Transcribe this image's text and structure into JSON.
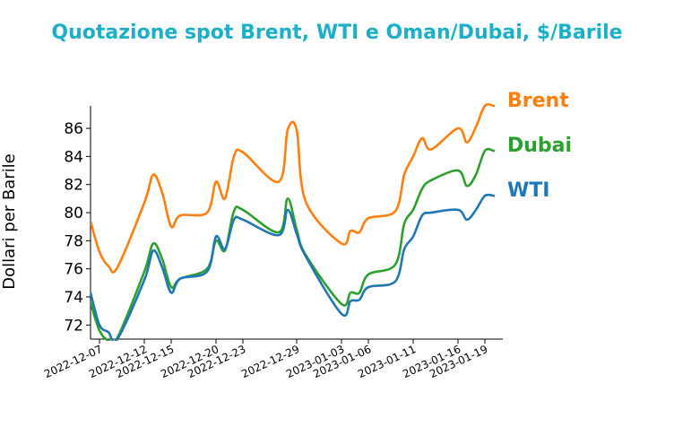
{
  "chart_data": {
    "type": "line",
    "title": "Quotazione spot Brent, WTI e Oman/Dubai, $/Barile",
    "title_color": "#1bb0c7",
    "xlabel": "",
    "ylabel": "Dollari per Barile",
    "ylim": [
      71,
      87.6
    ],
    "yticks": [
      72,
      74,
      76,
      78,
      80,
      82,
      84,
      86
    ],
    "xlim": [
      "2022-12-06",
      "2023-01-21"
    ],
    "xticks": [
      "2022-12-07",
      "2022-12-12",
      "2022-12-15",
      "2022-12-20",
      "2022-12-23",
      "2022-12-29",
      "2023-01-03",
      "2023-01-06",
      "2023-01-11",
      "2023-01-16",
      "2023-01-19"
    ],
    "grid": false,
    "legend": "labels at right end of each line",
    "series": [
      {
        "name": "Brent",
        "color": "#ff7f0e",
        "x": [
          "2022-12-06",
          "2022-12-07",
          "2022-12-08",
          "2022-12-09",
          "2022-12-12",
          "2022-12-13",
          "2022-12-14",
          "2022-12-15",
          "2022-12-16",
          "2022-12-19",
          "2022-12-20",
          "2022-12-21",
          "2022-12-22",
          "2022-12-23",
          "2022-12-27",
          "2022-12-28",
          "2022-12-29",
          "2022-12-30",
          "2023-01-03",
          "2023-01-04",
          "2023-01-05",
          "2023-01-06",
          "2023-01-09",
          "2023-01-10",
          "2023-01-11",
          "2023-01-12",
          "2023-01-13",
          "2023-01-16",
          "2023-01-17",
          "2023-01-18",
          "2023-01-19",
          "2023-01-20"
        ],
        "values": [
          79.4,
          77.2,
          76.2,
          76.1,
          80.7,
          82.7,
          81.4,
          79.0,
          79.8,
          80.0,
          82.2,
          81.0,
          84.0,
          84.3,
          82.2,
          85.9,
          85.9,
          80.8,
          77.8,
          78.7,
          78.6,
          79.6,
          80.1,
          82.7,
          84.0,
          85.3,
          84.5,
          86.0,
          85.0,
          86.1,
          87.6,
          87.6
        ]
      },
      {
        "name": "Dubai",
        "color": "#2ca02c",
        "x": [
          "2022-12-06",
          "2022-12-07",
          "2022-12-08",
          "2022-12-09",
          "2022-12-12",
          "2022-12-13",
          "2022-12-14",
          "2022-12-15",
          "2022-12-16",
          "2022-12-19",
          "2022-12-20",
          "2022-12-21",
          "2022-12-22",
          "2022-12-23",
          "2022-12-27",
          "2022-12-28",
          "2022-12-29",
          "2022-12-30",
          "2023-01-03",
          "2023-01-04",
          "2023-01-05",
          "2023-01-06",
          "2023-01-09",
          "2023-01-10",
          "2023-01-11",
          "2023-01-12",
          "2023-01-13",
          "2023-01-16",
          "2023-01-17",
          "2023-01-18",
          "2023-01-19",
          "2023-01-20"
        ],
        "values": [
          73.6,
          71.6,
          70.9,
          71.1,
          75.8,
          77.8,
          76.7,
          74.7,
          75.3,
          76.0,
          78.0,
          77.3,
          80.1,
          80.2,
          78.6,
          81.0,
          78.8,
          77.0,
          73.5,
          74.3,
          74.3,
          75.6,
          76.3,
          79.2,
          80.2,
          81.7,
          82.3,
          83.0,
          81.9,
          82.7,
          84.4,
          84.4
        ]
      },
      {
        "name": "WTI",
        "color": "#1f77b4",
        "x": [
          "2022-12-06",
          "2022-12-07",
          "2022-12-08",
          "2022-12-09",
          "2022-12-12",
          "2022-12-13",
          "2022-12-14",
          "2022-12-15",
          "2022-12-16",
          "2022-12-19",
          "2022-12-20",
          "2022-12-21",
          "2022-12-22",
          "2022-12-23",
          "2022-12-27",
          "2022-12-28",
          "2022-12-29",
          "2022-12-30",
          "2023-01-03",
          "2023-01-04",
          "2023-01-05",
          "2023-01-06",
          "2023-01-09",
          "2023-01-10",
          "2023-01-11",
          "2023-01-12",
          "2023-01-13",
          "2023-01-16",
          "2023-01-17",
          "2023-01-18",
          "2023-01-19",
          "2023-01-20"
        ],
        "values": [
          74.3,
          72.0,
          71.5,
          71.0,
          75.2,
          77.3,
          76.1,
          74.3,
          75.3,
          75.8,
          78.3,
          77.4,
          79.5,
          79.5,
          78.4,
          80.2,
          78.5,
          76.9,
          72.8,
          73.7,
          73.8,
          74.7,
          75.1,
          77.4,
          78.3,
          79.8,
          80.0,
          80.2,
          79.5,
          80.2,
          81.2,
          81.2
        ]
      }
    ]
  }
}
